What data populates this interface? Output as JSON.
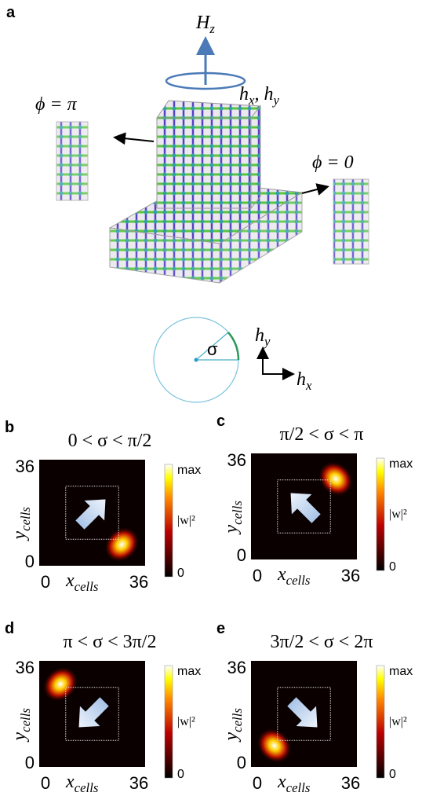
{
  "panel_a": {
    "label": "a",
    "field_z": [
      {
        "text": "H"
      },
      {
        "text": "z",
        "sub": true
      }
    ],
    "field_xy": [
      {
        "text": "h"
      },
      {
        "text": "x",
        "sub": true
      },
      {
        "text": ", "
      },
      {
        "text": "h"
      },
      {
        "text": "y",
        "sub": true
      }
    ],
    "phase_pi": "ϕ = π",
    "phase_zero": "ϕ = 0",
    "angle": "σ",
    "axis_y": [
      {
        "text": "h"
      },
      {
        "text": "y",
        "sub": true
      }
    ],
    "axis_x": [
      {
        "text": "h"
      },
      {
        "text": "x",
        "sub": true
      }
    ]
  },
  "panels": [
    {
      "label": "b",
      "title": "0 < σ < π/2",
      "y_max": 36,
      "y_min": 0,
      "x_min": 0,
      "x_max": 36,
      "y_label": [
        {
          "text": "y"
        },
        {
          "text": "cells",
          "sub": true
        }
      ],
      "x_label": [
        {
          "text": "x"
        },
        {
          "text": "cells",
          "sub": true
        }
      ],
      "colorbar_max": "max",
      "colorbar_label": "|w|²",
      "colorbar_min": 0
    },
    {
      "label": "c",
      "title": "π/2 < σ < π",
      "y_max": 36,
      "y_min": 0,
      "x_min": 0,
      "x_max": 36,
      "y_label": [
        {
          "text": "y"
        },
        {
          "text": "cells",
          "sub": true
        }
      ],
      "x_label": [
        {
          "text": "x"
        },
        {
          "text": "cells",
          "sub": true
        }
      ],
      "colorbar_max": "max",
      "colorbar_label": "|w|²",
      "colorbar_min": 0
    },
    {
      "label": "d",
      "title": "π < σ < 3π/2",
      "y_max": 36,
      "y_min": 0,
      "x_min": 0,
      "x_max": 36,
      "y_label": [
        {
          "text": "y"
        },
        {
          "text": "cells",
          "sub": true
        }
      ],
      "x_label": [
        {
          "text": "x"
        },
        {
          "text": "cells",
          "sub": true
        }
      ],
      "colorbar_max": "max",
      "colorbar_label": "|w|²",
      "colorbar_min": 0
    },
    {
      "label": "e",
      "title": "3π/2 < σ < 2π",
      "y_max": 36,
      "y_min": 0,
      "x_min": 0,
      "x_max": 36,
      "y_label": [
        {
          "text": "y"
        },
        {
          "text": "cells",
          "sub": true
        }
      ],
      "x_label": [
        {
          "text": "x"
        },
        {
          "text": "cells",
          "sub": true
        }
      ],
      "colorbar_max": "max",
      "colorbar_label": "|w|²",
      "colorbar_min": 0
    }
  ]
}
